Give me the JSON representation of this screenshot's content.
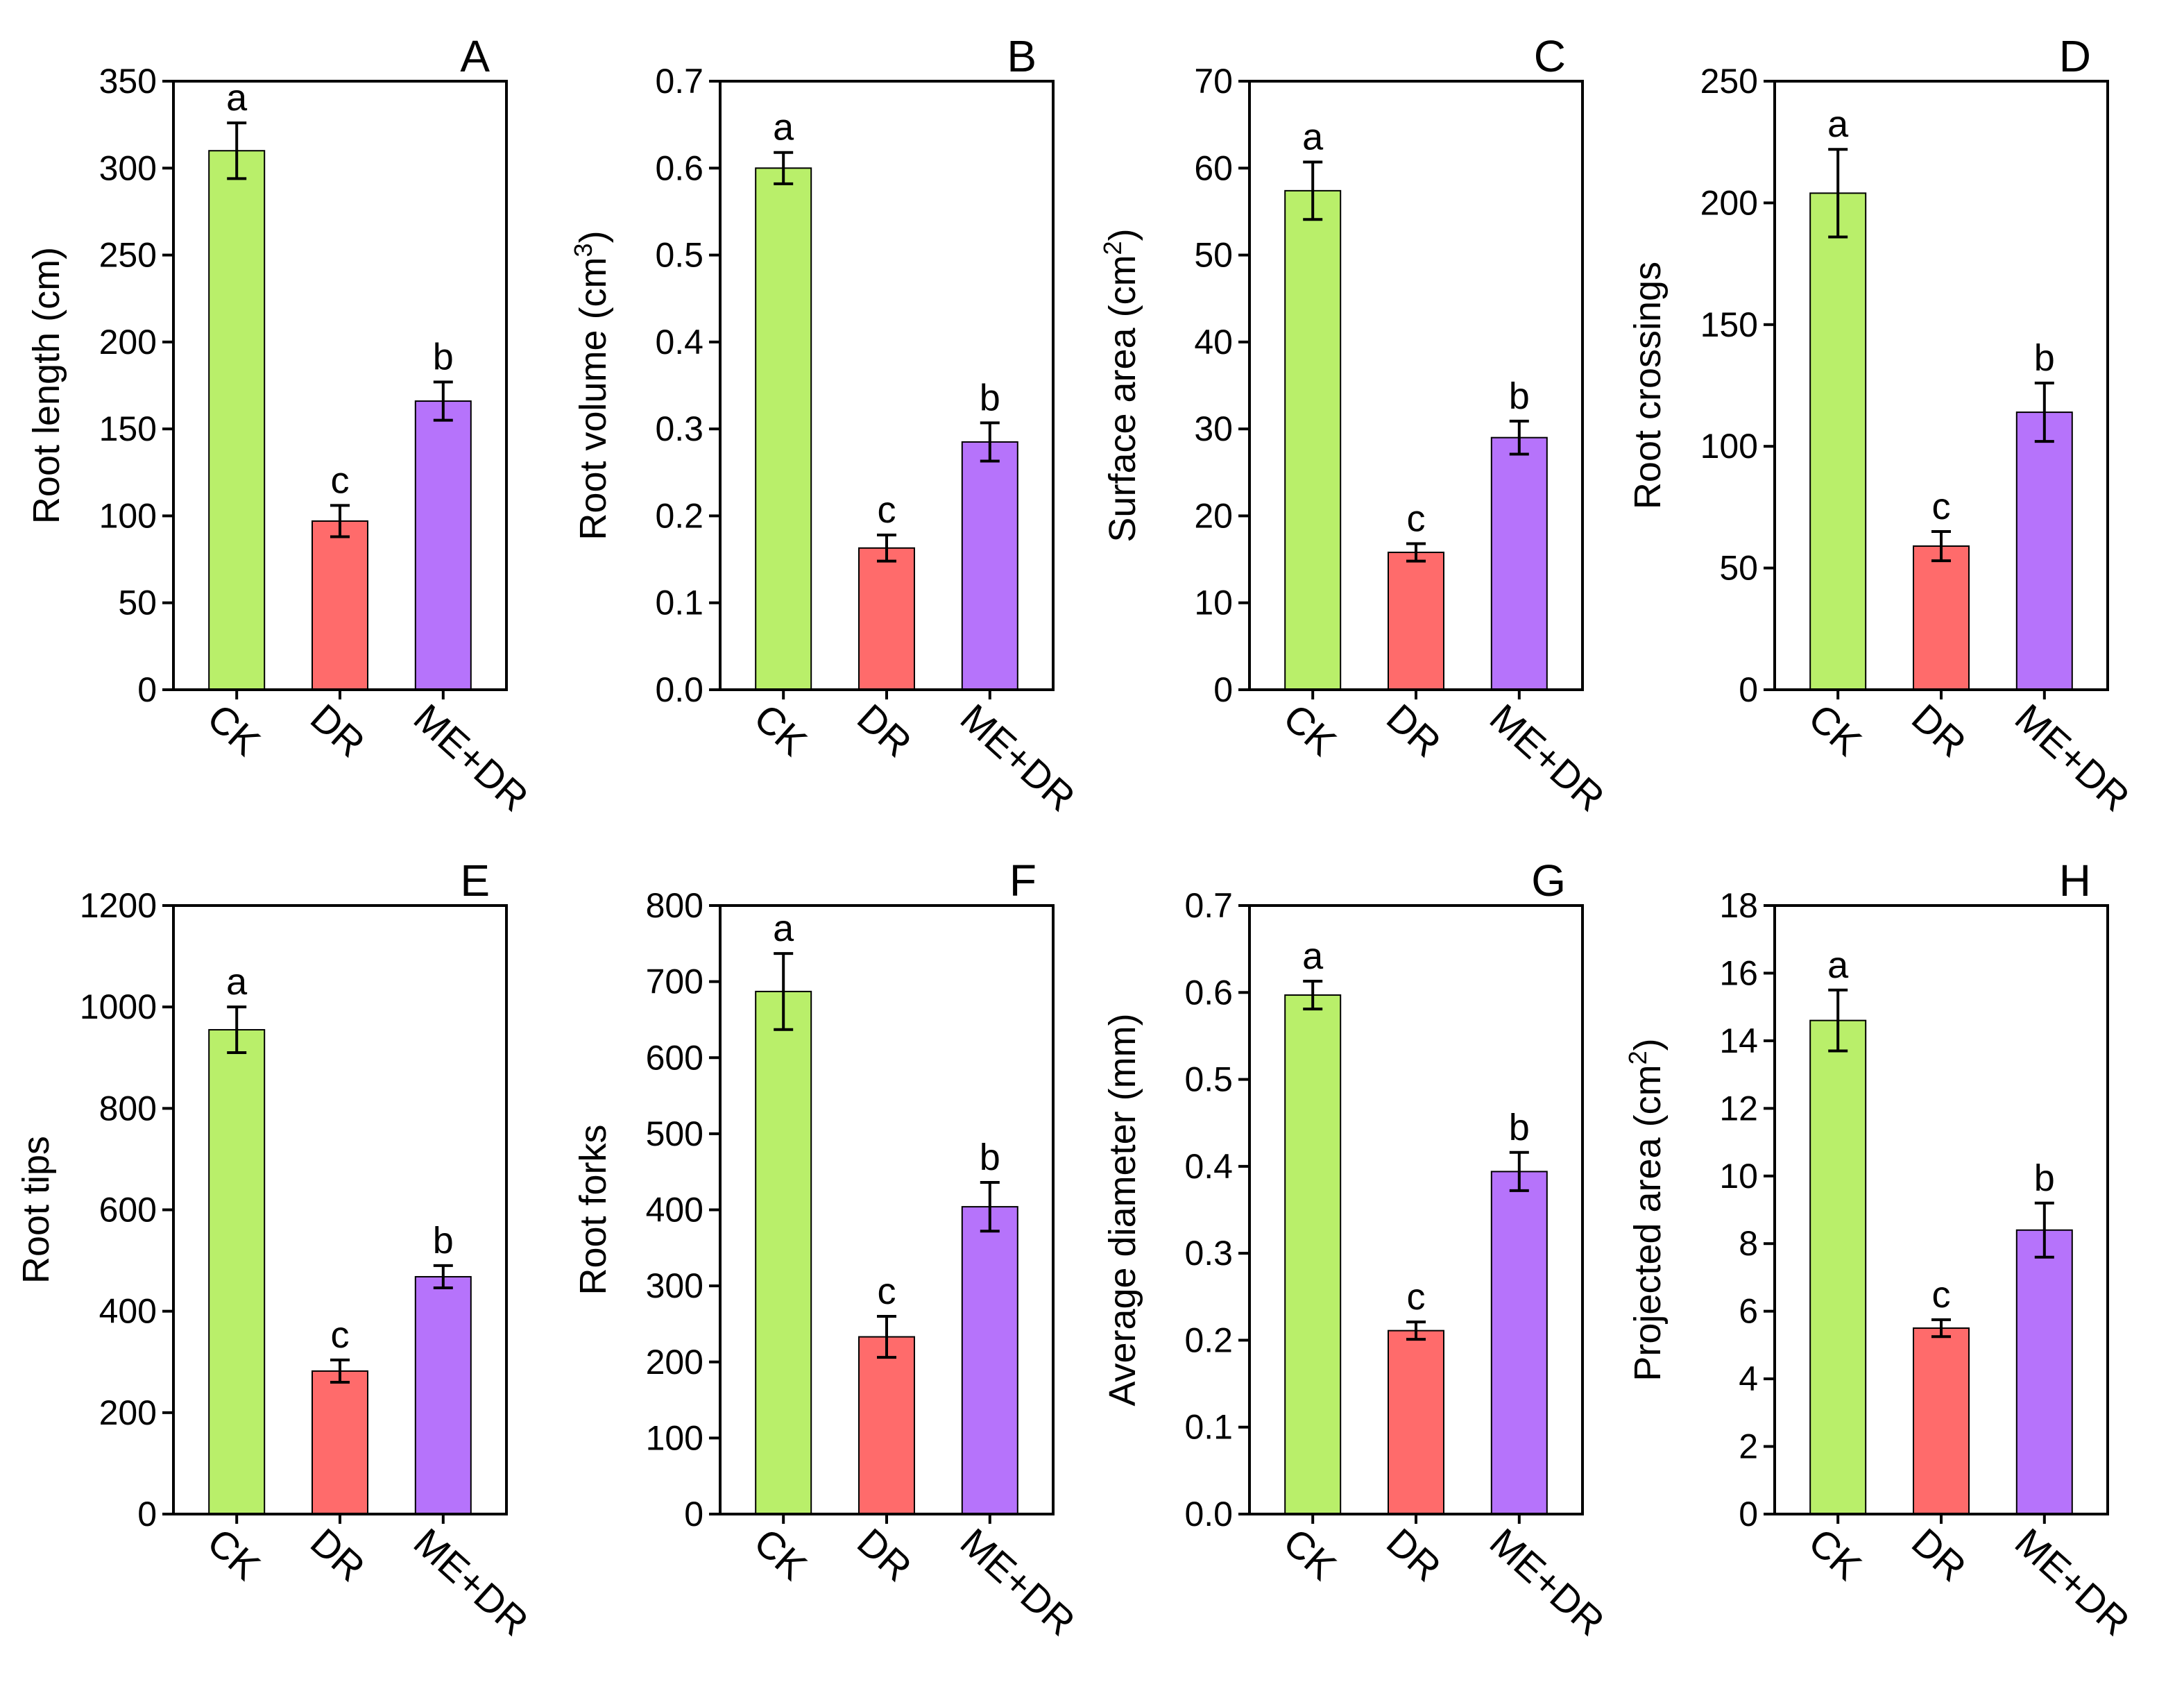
{
  "chart_data": [
    {
      "type": "bar",
      "panel": "A",
      "categories": [
        "CK",
        "DR",
        "ME+DR"
      ],
      "values": [
        310,
        97,
        166
      ],
      "errors": [
        16,
        9,
        11
      ],
      "letters": [
        "a",
        "c",
        "b"
      ],
      "ylabel": "Root length (cm)",
      "ylabel_sup": "",
      "ylim": [
        0,
        350
      ],
      "yticks": [
        "0",
        "50",
        "100",
        "150",
        "200",
        "250",
        "300",
        "350"
      ]
    },
    {
      "type": "bar",
      "panel": "B",
      "categories": [
        "CK",
        "DR",
        "ME+DR"
      ],
      "values": [
        0.6,
        0.163,
        0.285
      ],
      "errors": [
        0.018,
        0.015,
        0.022
      ],
      "letters": [
        "a",
        "c",
        "b"
      ],
      "ylabel": "Root volume (cm",
      "ylabel_sup": "3",
      "ylim": [
        0,
        0.7
      ],
      "yticks": [
        "0.0",
        "0.1",
        "0.2",
        "0.3",
        "0.4",
        "0.5",
        "0.6",
        "0.7"
      ]
    },
    {
      "type": "bar",
      "panel": "C",
      "categories": [
        "CK",
        "DR",
        "ME+DR"
      ],
      "values": [
        57.4,
        15.8,
        29.0
      ],
      "errors": [
        3.3,
        1.0,
        1.9
      ],
      "letters": [
        "a",
        "c",
        "b"
      ],
      "ylabel": "Surface area (cm",
      "ylabel_sup": "2",
      "ylim": [
        0,
        70
      ],
      "yticks": [
        "0",
        "10",
        "20",
        "30",
        "40",
        "50",
        "60",
        "70"
      ]
    },
    {
      "type": "bar",
      "panel": "D",
      "categories": [
        "CK",
        "DR",
        "ME+DR"
      ],
      "values": [
        204,
        59,
        114
      ],
      "errors": [
        18,
        6,
        12
      ],
      "letters": [
        "a",
        "c",
        "b"
      ],
      "ylabel": "Root crossings",
      "ylabel_sup": "",
      "ylim": [
        0,
        250
      ],
      "yticks": [
        "0",
        "50",
        "100",
        "150",
        "200",
        "250"
      ]
    },
    {
      "type": "bar",
      "panel": "E",
      "categories": [
        "CK",
        "DR",
        "ME+DR"
      ],
      "values": [
        955,
        282,
        468
      ],
      "errors": [
        45,
        22,
        22
      ],
      "letters": [
        "a",
        "c",
        "b"
      ],
      "ylabel": "Root tips",
      "ylabel_sup": "",
      "ylim": [
        0,
        1200
      ],
      "yticks": [
        "0",
        "200",
        "400",
        "600",
        "800",
        "1000",
        "1200"
      ]
    },
    {
      "type": "bar",
      "panel": "F",
      "categories": [
        "CK",
        "DR",
        "ME+DR"
      ],
      "values": [
        687,
        233,
        404
      ],
      "errors": [
        50,
        27,
        32
      ],
      "letters": [
        "a",
        "c",
        "b"
      ],
      "ylabel": "Root forks",
      "ylabel_sup": "",
      "ylim": [
        0,
        800
      ],
      "yticks": [
        "0",
        "100",
        "200",
        "300",
        "400",
        "500",
        "600",
        "700",
        "800"
      ]
    },
    {
      "type": "bar",
      "panel": "G",
      "categories": [
        "CK",
        "DR",
        "ME+DR"
      ],
      "values": [
        0.597,
        0.211,
        0.394
      ],
      "errors": [
        0.016,
        0.01,
        0.022
      ],
      "letters": [
        "a",
        "c",
        "b"
      ],
      "ylabel": "Average diameter (mm)",
      "ylabel_sup": "",
      "ylim": [
        0,
        0.7
      ],
      "yticks": [
        "0.0",
        "0.1",
        "0.2",
        "0.3",
        "0.4",
        "0.5",
        "0.6",
        "0.7"
      ]
    },
    {
      "type": "bar",
      "panel": "H",
      "categories": [
        "CK",
        "DR",
        "ME+DR"
      ],
      "values": [
        14.6,
        5.5,
        8.4
      ],
      "errors": [
        0.9,
        0.25,
        0.8
      ],
      "letters": [
        "a",
        "c",
        "b"
      ],
      "ylabel": "Projected area (cm",
      "ylabel_sup": "2",
      "ylim": [
        0,
        18
      ],
      "yticks": [
        "0",
        "2",
        "4",
        "6",
        "8",
        "10",
        "12",
        "14",
        "16",
        "18"
      ]
    }
  ],
  "colors": {
    "CK": "#b9ef6a",
    "DR": "#ff6b6b",
    "ME+DR": "#b673fb",
    "axis": "#000000"
  }
}
